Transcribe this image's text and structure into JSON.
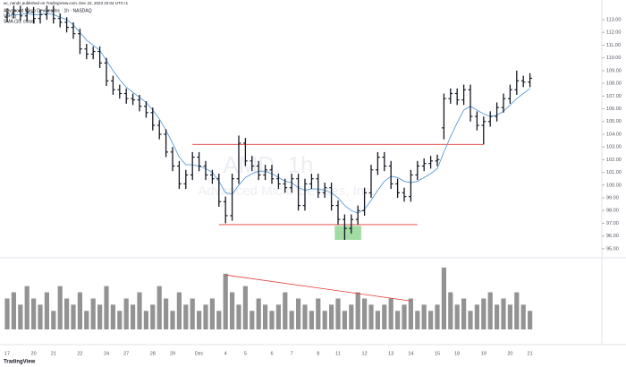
{
  "header": {
    "publisher": "ac_nandz published on TradingView.com, Dec 22, 2023 22:04 UTC+1"
  },
  "chart_data": {
    "type": "ohlc",
    "title": "Advanced Micro Devices Inc · 1h · NASDAQ",
    "watermark": "AMD, 1h",
    "watermark_subtitle": "Advanced Micro Devices, Inc.",
    "brand": "TradingView",
    "color": "#131722",
    "categories": [
      "17",
      null,
      null,
      null,
      "20",
      null,
      null,
      "21",
      null,
      null,
      null,
      "22",
      null,
      null,
      null,
      "24",
      null,
      null,
      "27",
      null,
      null,
      null,
      "28",
      null,
      null,
      "29",
      null,
      null,
      null,
      "Dec",
      null,
      null,
      null,
      "4",
      null,
      null,
      "5",
      null,
      null,
      null,
      "6",
      null,
      null,
      "7",
      null,
      null,
      null,
      "8",
      null,
      null,
      "11",
      null,
      null,
      null,
      "12",
      null,
      null,
      null,
      "13",
      null,
      null,
      "14",
      null,
      null,
      null,
      "15",
      null,
      null,
      "18",
      null,
      null,
      null,
      "19",
      null,
      null,
      null,
      "20",
      null,
      null,
      "21"
    ],
    "open": [
      113.2,
      113.5,
      113.7,
      113.3,
      113.6,
      113.1,
      113.4,
      113.7,
      113.1,
      112.8,
      112.4,
      111.9,
      110.7,
      110.3,
      110.5,
      109.6,
      108.2,
      107.5,
      107.2,
      106.8,
      106.7,
      106.2,
      105.7,
      104.7,
      104.0,
      102.6,
      101.5,
      100.1,
      100.8,
      102.2,
      101.5,
      100.8,
      100.5,
      98.7,
      97.6,
      100.5,
      103.3,
      101.9,
      101.5,
      100.8,
      101.2,
      100.5,
      100.1,
      99.8,
      100.5,
      98.4,
      100.1,
      100.5,
      99.4,
      99.8,
      98.4,
      97.3,
      96.6,
      97.3,
      98.0,
      99.4,
      101.2,
      102.2,
      101.5,
      100.1,
      99.4,
      99.1,
      100.8,
      101.5,
      101.7,
      101.9,
      104.5,
      106.8,
      107.2,
      106.7,
      107.5,
      105.4,
      104.7,
      105.0,
      105.4,
      106.1,
      106.8,
      107.5,
      108.2,
      108.1
    ],
    "high": [
      113.9,
      114.1,
      114.1,
      114.0,
      114.0,
      113.8,
      114.1,
      114.1,
      113.5,
      113.2,
      112.8,
      112.3,
      111.1,
      110.9,
      110.9,
      110.0,
      108.6,
      107.9,
      107.6,
      107.2,
      107.1,
      106.6,
      106.1,
      105.1,
      104.4,
      103.0,
      101.9,
      101.2,
      102.6,
      102.6,
      101.9,
      101.2,
      100.9,
      99.1,
      100.9,
      103.9,
      103.7,
      102.3,
      101.9,
      101.6,
      101.6,
      100.9,
      100.5,
      100.9,
      100.9,
      100.5,
      100.9,
      100.9,
      100.2,
      100.2,
      98.8,
      97.7,
      97.7,
      98.4,
      99.8,
      101.6,
      102.6,
      102.6,
      101.9,
      100.5,
      99.8,
      101.2,
      101.9,
      102.1,
      102.3,
      102.4,
      107.2,
      107.6,
      107.6,
      107.9,
      107.9,
      105.8,
      105.4,
      105.8,
      106.5,
      107.2,
      107.9,
      109.0,
      108.6,
      108.8
    ],
    "low": [
      112.8,
      113.1,
      112.9,
      112.9,
      112.7,
      112.7,
      113.0,
      112.7,
      112.4,
      112.0,
      111.5,
      110.3,
      109.9,
      109.9,
      109.2,
      107.8,
      107.1,
      106.8,
      106.4,
      106.3,
      105.8,
      105.3,
      104.3,
      103.6,
      102.2,
      101.1,
      99.7,
      99.7,
      100.4,
      101.1,
      100.4,
      100.1,
      98.3,
      97.0,
      97.2,
      100.1,
      101.5,
      101.1,
      100.4,
      100.4,
      100.1,
      99.7,
      99.4,
      99.4,
      98.0,
      98.0,
      99.7,
      99.0,
      99.0,
      98.0,
      96.9,
      95.7,
      96.2,
      96.9,
      97.6,
      99.0,
      100.8,
      101.1,
      99.7,
      99.0,
      98.7,
      98.7,
      100.4,
      101.1,
      101.3,
      101.5,
      103.6,
      106.4,
      106.3,
      106.3,
      105.0,
      104.3,
      103.2,
      104.6,
      105.0,
      105.7,
      106.4,
      107.1,
      107.7,
      107.7
    ],
    "close": [
      113.5,
      113.7,
      113.3,
      113.6,
      113.1,
      113.4,
      113.7,
      113.1,
      112.8,
      112.4,
      111.9,
      110.7,
      110.3,
      110.5,
      109.6,
      108.2,
      107.5,
      107.2,
      106.8,
      106.7,
      106.2,
      105.7,
      104.7,
      104.0,
      102.6,
      101.5,
      100.1,
      100.8,
      102.2,
      101.5,
      100.8,
      100.5,
      98.7,
      97.6,
      100.5,
      103.3,
      101.9,
      101.5,
      100.8,
      101.2,
      100.5,
      100.1,
      99.8,
      100.5,
      98.4,
      100.1,
      100.5,
      99.4,
      99.8,
      98.4,
      97.3,
      96.6,
      97.3,
      98.0,
      99.4,
      101.2,
      102.2,
      101.5,
      100.1,
      99.4,
      99.1,
      100.8,
      101.5,
      101.7,
      101.9,
      102.0,
      106.8,
      107.2,
      106.7,
      107.5,
      105.4,
      104.7,
      105.0,
      105.4,
      106.1,
      106.8,
      107.5,
      108.2,
      108.1,
      108.4
    ],
    "ylim": [
      94.5,
      114.2
    ],
    "yticks": [
      {
        "value": 95,
        "label": "95.00"
      },
      {
        "value": 96,
        "label": "96.00"
      },
      {
        "value": 97,
        "label": "97.00"
      },
      {
        "value": 98,
        "label": "98.00"
      },
      {
        "value": 99,
        "label": "99.00"
      },
      {
        "value": 100,
        "label": "100.00"
      },
      {
        "value": 101,
        "label": "101.00"
      },
      {
        "value": 102,
        "label": "102.00"
      },
      {
        "value": 103,
        "label": "103.00"
      },
      {
        "value": 104,
        "label": "104.00"
      },
      {
        "value": 105,
        "label": "105.00"
      },
      {
        "value": 106,
        "label": "106.00"
      },
      {
        "value": 107,
        "label": "107.00"
      },
      {
        "value": 108,
        "label": "108.00"
      },
      {
        "value": 109,
        "label": "109.00"
      },
      {
        "value": 110,
        "label": "110.00"
      },
      {
        "value": 111,
        "label": "111.00"
      },
      {
        "value": 112,
        "label": "112.00"
      },
      {
        "value": 113,
        "label": "113.00"
      }
    ],
    "indicators": [
      {
        "name": "Vol (2)",
        "type": "bar",
        "color": "#808080",
        "ylim": [
          0,
          11
        ],
        "values": [
          5,
          6,
          4,
          7,
          5,
          4,
          6,
          3,
          7,
          5,
          4,
          6,
          3,
          5,
          4,
          7,
          4,
          3,
          5,
          4,
          6,
          3,
          4,
          7,
          5,
          3,
          6,
          4,
          5,
          3,
          4,
          5,
          3,
          9,
          6,
          4,
          7,
          3,
          5,
          4,
          3,
          4,
          6,
          3,
          5,
          4,
          3,
          5,
          3,
          4,
          5,
          3,
          4,
          6,
          5,
          4,
          3,
          4,
          5,
          3,
          4,
          5,
          3,
          4,
          3,
          4,
          10,
          6,
          4,
          5,
          3,
          4,
          5,
          6,
          4,
          5,
          4,
          6,
          4,
          3
        ],
        "trend": {
          "x": [
            33,
            61
          ],
          "y": [
            8.8,
            4.6
          ],
          "color": "#e53935"
        }
      },
      {
        "name": "SMA (10, close)",
        "type": "line",
        "color": "#5b9bd5",
        "values": [
          113.3,
          113.4,
          113.4,
          113.5,
          113.4,
          113.4,
          113.5,
          113.4,
          113.2,
          113.0,
          112.6,
          112.0,
          111.4,
          111.0,
          110.6,
          109.8,
          109.0,
          108.3,
          107.7,
          107.3,
          106.9,
          106.5,
          105.9,
          105.2,
          104.3,
          103.3,
          102.2,
          101.6,
          101.6,
          101.5,
          101.3,
          101.0,
          100.3,
          99.4,
          99.3,
          100.0,
          100.6,
          100.9,
          101.1,
          101.1,
          100.9,
          100.6,
          100.3,
          100.2,
          99.8,
          99.6,
          99.7,
          99.7,
          99.6,
          99.4,
          99.0,
          98.4,
          98.0,
          97.8,
          98.1,
          98.8,
          99.6,
          100.3,
          100.7,
          100.6,
          100.3,
          100.2,
          100.3,
          100.6,
          100.9,
          101.3,
          102.6,
          103.8,
          104.9,
          105.9,
          106.2,
          105.9,
          105.6,
          105.4,
          105.5,
          105.8,
          106.3,
          106.8,
          107.2,
          107.6
        ]
      }
    ],
    "levels": [
      {
        "value": 103.2,
        "x": [
          28,
          72
        ],
        "color": "#e53935"
      },
      {
        "value": 96.9,
        "x": [
          32,
          62
        ],
        "color": "#e53935"
      }
    ],
    "zone": {
      "x": [
        49.5,
        53.5
      ],
      "y": [
        95.7,
        96.8
      ],
      "color": "#8fd694"
    }
  }
}
